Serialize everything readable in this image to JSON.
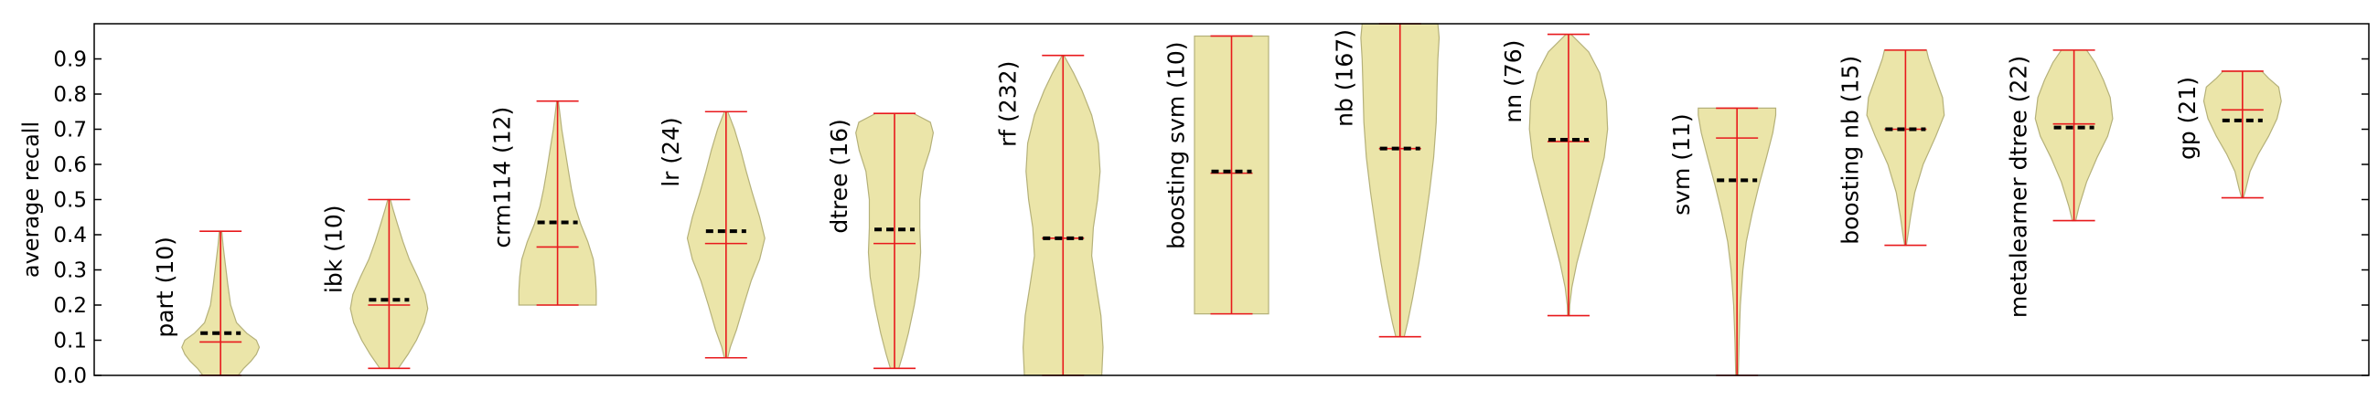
{
  "chart_data": {
    "type": "violin",
    "title": "",
    "xlabel": "",
    "ylabel": "average recall",
    "ylim": [
      0,
      1.0
    ],
    "yticks": [
      "0.0",
      "0.1",
      "0.2",
      "0.3",
      "0.4",
      "0.5",
      "0.6",
      "0.7",
      "0.8",
      "0.9"
    ],
    "grid": false,
    "legend": "none",
    "colors": {
      "body_fill": "#ebe5a9",
      "body_stroke": "#b5b17a",
      "range_line": "#e8191c",
      "mean_marker": "#000000",
      "axis": "#000000"
    },
    "series": [
      {
        "label": "part (10)",
        "min": 0.0,
        "max": 0.41,
        "median": 0.095,
        "mean": 0.12,
        "profile": [
          [
            0.0,
            0.42
          ],
          [
            0.02,
            0.55
          ],
          [
            0.04,
            0.72
          ],
          [
            0.06,
            0.85
          ],
          [
            0.08,
            0.92
          ],
          [
            0.1,
            0.85
          ],
          [
            0.12,
            0.62
          ],
          [
            0.15,
            0.38
          ],
          [
            0.2,
            0.24
          ],
          [
            0.26,
            0.17
          ],
          [
            0.32,
            0.11
          ],
          [
            0.37,
            0.06
          ],
          [
            0.41,
            0.03
          ]
        ]
      },
      {
        "label": "ibk (10)",
        "min": 0.02,
        "max": 0.5,
        "median": 0.2,
        "mean": 0.215,
        "profile": [
          [
            0.02,
            0.22
          ],
          [
            0.06,
            0.45
          ],
          [
            0.1,
            0.65
          ],
          [
            0.15,
            0.84
          ],
          [
            0.19,
            0.92
          ],
          [
            0.23,
            0.86
          ],
          [
            0.28,
            0.68
          ],
          [
            0.33,
            0.48
          ],
          [
            0.38,
            0.33
          ],
          [
            0.43,
            0.2
          ],
          [
            0.47,
            0.1
          ],
          [
            0.5,
            0.03
          ]
        ]
      },
      {
        "label": "crm114 (12)",
        "min": 0.2,
        "max": 0.78,
        "median": 0.365,
        "mean": 0.435,
        "profile": [
          [
            0.2,
            0.92
          ],
          [
            0.24,
            0.92
          ],
          [
            0.28,
            0.9
          ],
          [
            0.33,
            0.85
          ],
          [
            0.38,
            0.72
          ],
          [
            0.43,
            0.55
          ],
          [
            0.48,
            0.42
          ],
          [
            0.53,
            0.33
          ],
          [
            0.58,
            0.26
          ],
          [
            0.64,
            0.18
          ],
          [
            0.7,
            0.1
          ],
          [
            0.75,
            0.05
          ],
          [
            0.78,
            0.02
          ]
        ]
      },
      {
        "label": "lr (24)",
        "min": 0.05,
        "max": 0.75,
        "median": 0.375,
        "mean": 0.41,
        "profile": [
          [
            0.05,
            0.04
          ],
          [
            0.08,
            0.1
          ],
          [
            0.13,
            0.25
          ],
          [
            0.2,
            0.42
          ],
          [
            0.27,
            0.6
          ],
          [
            0.33,
            0.8
          ],
          [
            0.39,
            0.92
          ],
          [
            0.45,
            0.8
          ],
          [
            0.52,
            0.62
          ],
          [
            0.58,
            0.48
          ],
          [
            0.64,
            0.35
          ],
          [
            0.7,
            0.2
          ],
          [
            0.75,
            0.04
          ]
        ]
      },
      {
        "label": "dtree (16)",
        "min": 0.02,
        "max": 0.745,
        "median": 0.375,
        "mean": 0.415,
        "profile": [
          [
            0.02,
            0.1
          ],
          [
            0.06,
            0.2
          ],
          [
            0.12,
            0.33
          ],
          [
            0.2,
            0.47
          ],
          [
            0.28,
            0.58
          ],
          [
            0.35,
            0.62
          ],
          [
            0.42,
            0.6
          ],
          [
            0.5,
            0.6
          ],
          [
            0.58,
            0.68
          ],
          [
            0.64,
            0.84
          ],
          [
            0.69,
            0.92
          ],
          [
            0.72,
            0.85
          ],
          [
            0.745,
            0.45
          ]
        ]
      },
      {
        "label": "rf (232)",
        "min": 0.0,
        "max": 0.91,
        "median": 0.39,
        "mean": 0.39,
        "profile": [
          [
            0.0,
            0.92
          ],
          [
            0.08,
            0.95
          ],
          [
            0.17,
            0.9
          ],
          [
            0.26,
            0.78
          ],
          [
            0.34,
            0.68
          ],
          [
            0.42,
            0.72
          ],
          [
            0.5,
            0.82
          ],
          [
            0.58,
            0.88
          ],
          [
            0.66,
            0.84
          ],
          [
            0.74,
            0.68
          ],
          [
            0.81,
            0.45
          ],
          [
            0.86,
            0.25
          ],
          [
            0.91,
            0.02
          ]
        ]
      },
      {
        "label": "boosting svm (10)",
        "min": 0.175,
        "max": 0.965,
        "median": 0.575,
        "mean": 0.58,
        "profile": [
          [
            0.175,
            0.88
          ],
          [
            0.25,
            0.88
          ],
          [
            0.35,
            0.88
          ],
          [
            0.45,
            0.88
          ],
          [
            0.55,
            0.88
          ],
          [
            0.65,
            0.88
          ],
          [
            0.75,
            0.88
          ],
          [
            0.85,
            0.88
          ],
          [
            0.93,
            0.88
          ],
          [
            0.965,
            0.88
          ]
        ]
      },
      {
        "label": "nb (167)",
        "min": 0.11,
        "max": 1.0,
        "median": 0.645,
        "mean": 0.645,
        "profile": [
          [
            0.11,
            0.1
          ],
          [
            0.15,
            0.18
          ],
          [
            0.22,
            0.3
          ],
          [
            0.32,
            0.45
          ],
          [
            0.42,
            0.58
          ],
          [
            0.52,
            0.7
          ],
          [
            0.62,
            0.8
          ],
          [
            0.72,
            0.86
          ],
          [
            0.82,
            0.88
          ],
          [
            0.9,
            0.9
          ],
          [
            0.96,
            0.93
          ],
          [
            1.0,
            0.9
          ]
        ]
      },
      {
        "label": "nn (76)",
        "min": 0.17,
        "max": 0.97,
        "median": 0.665,
        "mean": 0.67,
        "profile": [
          [
            0.17,
            0.02
          ],
          [
            0.2,
            0.03
          ],
          [
            0.25,
            0.08
          ],
          [
            0.32,
            0.2
          ],
          [
            0.42,
            0.42
          ],
          [
            0.52,
            0.64
          ],
          [
            0.62,
            0.85
          ],
          [
            0.7,
            0.93
          ],
          [
            0.78,
            0.9
          ],
          [
            0.86,
            0.74
          ],
          [
            0.92,
            0.48
          ],
          [
            0.97,
            0.06
          ]
        ]
      },
      {
        "label": "svm (11)",
        "min": 0.0,
        "max": 0.76,
        "median": 0.675,
        "mean": 0.555,
        "profile": [
          [
            0.0,
            0.03
          ],
          [
            0.1,
            0.05
          ],
          [
            0.2,
            0.08
          ],
          [
            0.3,
            0.14
          ],
          [
            0.38,
            0.22
          ],
          [
            0.46,
            0.36
          ],
          [
            0.54,
            0.52
          ],
          [
            0.62,
            0.7
          ],
          [
            0.69,
            0.85
          ],
          [
            0.74,
            0.92
          ],
          [
            0.76,
            0.92
          ]
        ]
      },
      {
        "label": "boosting nb (15)",
        "min": 0.37,
        "max": 0.925,
        "median": 0.7,
        "mean": 0.7,
        "profile": [
          [
            0.37,
            0.02
          ],
          [
            0.4,
            0.06
          ],
          [
            0.45,
            0.12
          ],
          [
            0.52,
            0.22
          ],
          [
            0.6,
            0.42
          ],
          [
            0.68,
            0.72
          ],
          [
            0.74,
            0.92
          ],
          [
            0.79,
            0.88
          ],
          [
            0.85,
            0.7
          ],
          [
            0.9,
            0.55
          ],
          [
            0.925,
            0.5
          ]
        ]
      },
      {
        "label": "metalearner dtree (22)",
        "min": 0.44,
        "max": 0.925,
        "median": 0.715,
        "mean": 0.705,
        "profile": [
          [
            0.44,
            0.04
          ],
          [
            0.48,
            0.12
          ],
          [
            0.55,
            0.3
          ],
          [
            0.62,
            0.55
          ],
          [
            0.68,
            0.8
          ],
          [
            0.73,
            0.92
          ],
          [
            0.79,
            0.86
          ],
          [
            0.84,
            0.7
          ],
          [
            0.89,
            0.5
          ],
          [
            0.925,
            0.3
          ]
        ]
      },
      {
        "label": "gp (21)",
        "min": 0.505,
        "max": 0.865,
        "median": 0.755,
        "mean": 0.725,
        "profile": [
          [
            0.505,
            0.02
          ],
          [
            0.53,
            0.08
          ],
          [
            0.58,
            0.18
          ],
          [
            0.63,
            0.38
          ],
          [
            0.68,
            0.62
          ],
          [
            0.73,
            0.82
          ],
          [
            0.78,
            0.92
          ],
          [
            0.82,
            0.86
          ],
          [
            0.845,
            0.62
          ],
          [
            0.865,
            0.46
          ]
        ]
      }
    ]
  }
}
